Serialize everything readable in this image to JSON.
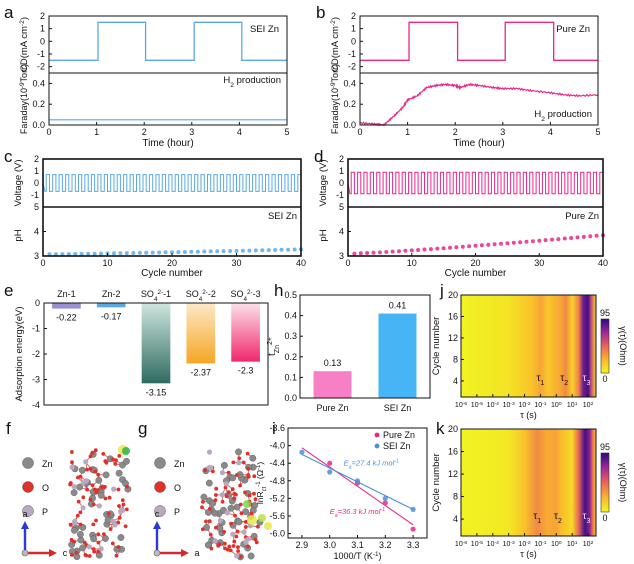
{
  "chart_data": [
    {
      "panel": "a",
      "type": "line",
      "title": "",
      "subplots": [
        {
          "ylabel": "CD(mA cm^-2)",
          "ylim": [
            -2.5,
            2
          ],
          "yticks": [
            "2",
            "1",
            "0",
            "-1",
            "-2"
          ],
          "annotation": "SEI Zn",
          "series": [
            {
              "name": "current density",
              "color": "#5aa9e6",
              "x": [
                0,
                0.02,
                0.02,
                1.03,
                1.03,
                2.03,
                2.03,
                3.05,
                3.05,
                4.05,
                4.05,
                5
              ],
              "y": [
                -1.5,
                -1.5,
                -1.5,
                -1.5,
                1.5,
                1.5,
                -1.5,
                -1.5,
                1.5,
                1.5,
                -1.5,
                -1.5
              ]
            }
          ]
        },
        {
          "ylabel": "Faraday(10^-9 Torr)",
          "ylim": [
            0,
            0.5
          ],
          "yticks": [
            "0.0",
            "0.2",
            "0.4"
          ],
          "annotation": "H2 production",
          "series": [
            {
              "name": "H2 production",
              "color": "#5aa9e6",
              "x": [
                0,
                5
              ],
              "y": [
                0.05,
                0.05
              ]
            }
          ]
        }
      ],
      "xlabel": "Time (hour)",
      "xlim": [
        0,
        5
      ],
      "xticks": [
        "0",
        "1",
        "2",
        "3",
        "4",
        "5"
      ]
    },
    {
      "panel": "b",
      "type": "line",
      "subplots": [
        {
          "ylabel": "CD(mA cm^-2)",
          "ylim": [
            -2.5,
            2
          ],
          "yticks": [
            "2",
            "1",
            "0",
            "-1",
            "-2"
          ],
          "annotation": "Pure Zn",
          "series": [
            {
              "name": "current density",
              "color": "#e8288a",
              "x": [
                0,
                0.02,
                0.02,
                1.03,
                1.03,
                2.05,
                2.05,
                3.05,
                3.05,
                4.07,
                4.07,
                5
              ],
              "y": [
                -1.5,
                -1.5,
                -1.5,
                -1.5,
                1.5,
                1.5,
                -1.5,
                -1.5,
                1.5,
                1.5,
                -1.5,
                -1.5
              ]
            }
          ]
        },
        {
          "ylabel": "Faraday(10^-9 Torr)",
          "ylim": [
            0,
            0.5
          ],
          "yticks": [
            "0.0",
            "0.2",
            "0.4"
          ],
          "annotation": "H2 production",
          "series": [
            {
              "name": "H2 production",
              "color": "#e8288a",
              "x": [
                0,
                0.3,
                0.5,
                0.7,
                0.9,
                1.0,
                1.2,
                1.4,
                1.6,
                1.8,
                2.0,
                2.1,
                2.3,
                2.5,
                2.8,
                3.0,
                3.3,
                3.6,
                4.0,
                4.3,
                4.6,
                5.0
              ],
              "y": [
                0.02,
                0.01,
                0.0,
                0.08,
                0.17,
                0.24,
                0.28,
                0.36,
                0.38,
                0.39,
                0.38,
                0.36,
                0.39,
                0.38,
                0.36,
                0.35,
                0.35,
                0.33,
                0.31,
                0.29,
                0.28,
                0.29
              ]
            }
          ]
        }
      ],
      "xlabel": "Time (hour)",
      "xlim": [
        0,
        5
      ],
      "xticks": [
        "0",
        "1",
        "2",
        "3",
        "4",
        "5"
      ]
    },
    {
      "panel": "c",
      "type": "line",
      "subplots": [
        {
          "ylabel": "Voltage (V)",
          "ylim": [
            -2,
            2
          ],
          "yticks": [
            "2",
            "1",
            "0",
            "-1"
          ],
          "series": [
            {
              "name": "voltage",
              "color": "#5aa9e6",
              "cycles": 40,
              "amplitude": 0.7
            }
          ]
        },
        {
          "ylabel": "pH",
          "ylim": [
            3,
            5
          ],
          "yticks": [
            "5",
            "4",
            "3"
          ],
          "annotation": "SEI Zn",
          "series": [
            {
              "name": "pH",
              "color": "#5aa9e6",
              "x_start": 1,
              "x_end": 40,
              "y_start": 3.07,
              "y_end": 3.27
            }
          ]
        }
      ],
      "xlabel": "Cycle number",
      "xlim": [
        0,
        40
      ],
      "xticks": [
        "0",
        "10",
        "20",
        "30",
        "40"
      ]
    },
    {
      "panel": "d",
      "type": "line",
      "subplots": [
        {
          "ylabel": "Voltage (V)",
          "ylim": [
            -2,
            2
          ],
          "yticks": [
            "2",
            "1",
            "0",
            "-1"
          ],
          "series": [
            {
              "name": "voltage",
              "color": "#e8288a",
              "cycles": 40,
              "amplitude": 0.9
            }
          ]
        },
        {
          "ylabel": "pH",
          "ylim": [
            3,
            5
          ],
          "yticks": [
            "5",
            "4",
            "3"
          ],
          "annotation": "Pure Zn",
          "series": [
            {
              "name": "pH",
              "color": "#e8288a",
              "x_start": 1,
              "x_end": 40,
              "y_start": 3.1,
              "y_end": 3.85
            }
          ]
        }
      ],
      "xlabel": "Cycle number",
      "xlim": [
        0,
        40
      ],
      "xticks": [
        "0",
        "10",
        "20",
        "30",
        "40"
      ]
    },
    {
      "panel": "e",
      "type": "bar",
      "categories": [
        "Zn-1",
        "Zn-2",
        "SO4^2--1",
        "SO4^2--2",
        "SO4^2--3"
      ],
      "category_labels": [
        {
          "main": "Zn-1",
          "sub": "",
          "sup": "",
          "tail": ""
        },
        {
          "main": "Zn-2",
          "sub": "",
          "sup": "",
          "tail": ""
        },
        {
          "main": "SO",
          "sub": "4",
          "sup": "2-",
          "tail": "-1"
        },
        {
          "main": "SO",
          "sub": "4",
          "sup": "2-",
          "tail": "-2"
        },
        {
          "main": "SO",
          "sub": "4",
          "sup": "2-",
          "tail": "-3"
        }
      ],
      "values": [
        -0.22,
        -0.17,
        -3.15,
        -2.37,
        -2.3
      ],
      "value_labels": [
        "-0.22",
        "-0.17",
        "-3.15",
        "-2.37",
        "-2.3"
      ],
      "colors": [
        [
          "#9c8fd0",
          "#9c8fd0"
        ],
        [
          "#5aa9e6",
          "#5aa9e6"
        ],
        [
          "#cfe6df",
          "#2e6b60"
        ],
        [
          "#fde9c7",
          "#f5a623"
        ],
        [
          "#fde0ea",
          "#f0286a"
        ]
      ],
      "ylabel": "Adsorption energy(eV)",
      "ylim": [
        -4,
        0
      ],
      "yticks": [
        "0",
        "-1",
        "-2",
        "-3",
        "-4"
      ]
    },
    {
      "panel": "h",
      "type": "bar",
      "categories": [
        "Pure Zn",
        "SEI Zn"
      ],
      "values": [
        0.13,
        0.41
      ],
      "value_labels": [
        "0.13",
        "0.41"
      ],
      "colors": [
        "#f77fc6",
        "#46b4f5"
      ],
      "ylabel": "t_Zn2+",
      "ylim": [
        0,
        0.5
      ],
      "yticks": [
        "0.0",
        "0.1",
        "0.2",
        "0.3",
        "0.4",
        "0.5"
      ]
    },
    {
      "panel": "i",
      "type": "scatter",
      "xlabel": "1000/T (K^-1)",
      "ylabel": "lnRct^-1 (Ω^-1)",
      "xlim": [
        2.85,
        3.35
      ],
      "ylim": [
        -6.1,
        -3.6
      ],
      "xticks": [
        "2.9",
        "3.0",
        "3.1",
        "3.2",
        "3.3"
      ],
      "yticks": [
        "-3.6",
        "-4.0",
        "-4.4",
        "-4.8",
        "-5.2",
        "-5.6",
        "-6.0"
      ],
      "series": [
        {
          "name": "Pure Zn",
          "color": "#e8288a",
          "x": [
            3.0,
            3.1,
            3.2,
            3.3
          ],
          "y": [
            -4.4,
            -4.85,
            -5.3,
            -5.9
          ],
          "fit": {
            "x": [
              2.9,
              3.3
            ],
            "y": [
              -4.05,
              -5.8
            ]
          },
          "label": "Ea=36.3 kJ mol-1"
        },
        {
          "name": "SEI Zn",
          "color": "#4a90d9",
          "x": [
            2.9,
            3.0,
            3.1,
            3.2,
            3.3
          ],
          "y": [
            -4.15,
            -4.6,
            -4.8,
            -5.2,
            -5.45
          ],
          "fit": {
            "x": [
              2.9,
              3.3
            ],
            "y": [
              -4.2,
              -5.45
            ]
          },
          "label": "Ea=27.4 kJ mol-1"
        }
      ]
    },
    {
      "panel": "j",
      "type": "heatmap",
      "xlabel": "τ (s)",
      "ylabel": "Cycle number",
      "xlim_log10": [
        -6,
        2.5
      ],
      "ylim": [
        1,
        20
      ],
      "xticks": [
        {
          "b": "10",
          "e": "-6"
        },
        {
          "b": "10",
          "e": "-5"
        },
        {
          "b": "10",
          "e": "-4"
        },
        {
          "b": "10",
          "e": "-3"
        },
        {
          "b": "10",
          "e": "-2"
        },
        {
          "b": "10",
          "e": "-1"
        },
        {
          "b": "10",
          "e": "0"
        },
        {
          "b": "10",
          "e": "1"
        },
        {
          "b": "10",
          "e": "2"
        }
      ],
      "yticks": [
        "20",
        "16",
        "12",
        "8",
        "4"
      ],
      "colorbar": {
        "label": "γ(τ)(Ohm)",
        "min": "0",
        "max": "95"
      },
      "peaks": [
        {
          "label": "τ",
          "sub": "1",
          "log_tau": -1
        },
        {
          "label": "τ",
          "sub": "2",
          "log_tau": 0.5
        },
        {
          "label": "τ",
          "sub": "3",
          "log_tau": 1.9
        }
      ]
    },
    {
      "panel": "k",
      "type": "heatmap",
      "xlabel": "τ (s)",
      "ylabel": "Cycle number",
      "xlim_log10": [
        -6,
        2.5
      ],
      "ylim": [
        1,
        20
      ],
      "xticks": [
        {
          "b": "10",
          "e": "-6"
        },
        {
          "b": "10",
          "e": "-5"
        },
        {
          "b": "10",
          "e": "-4"
        },
        {
          "b": "10",
          "e": "-3"
        },
        {
          "b": "10",
          "e": "-2"
        },
        {
          "b": "10",
          "e": "-1"
        },
        {
          "b": "10",
          "e": "0"
        },
        {
          "b": "10",
          "e": "1"
        },
        {
          "b": "10",
          "e": "2"
        }
      ],
      "yticks": [
        "20",
        "16",
        "12",
        "8",
        "4"
      ],
      "colorbar": {
        "label": "γ(τ)(Ohm)",
        "min": "0",
        "max": "95"
      },
      "peaks": [
        {
          "label": "τ",
          "sub": "1",
          "log_tau": -1.2
        },
        {
          "label": "τ",
          "sub": "2",
          "log_tau": 0.1
        },
        {
          "label": "τ",
          "sub": "3",
          "log_tau": 1.9
        }
      ]
    }
  ],
  "panels": {
    "a": "a",
    "b": "b",
    "c": "c",
    "d": "d",
    "e": "e",
    "f": "f",
    "g": "g",
    "h": "h",
    "i": "i",
    "j": "j",
    "k": "k"
  },
  "structures": {
    "f": {
      "legend": [
        "Zn",
        "O",
        "P"
      ],
      "axes": {
        "up": "a",
        "right": "c"
      }
    },
    "g": {
      "legend": [
        "Zn",
        "O",
        "P"
      ],
      "axes": {
        "up": "c",
        "right": "a"
      }
    },
    "colors": {
      "Zn": "#8a8a8a",
      "O": "#e0302a",
      "P": "#b9a9c0",
      "axis_up": "#2a3ad6",
      "axis_right": "#d42a2a"
    }
  }
}
